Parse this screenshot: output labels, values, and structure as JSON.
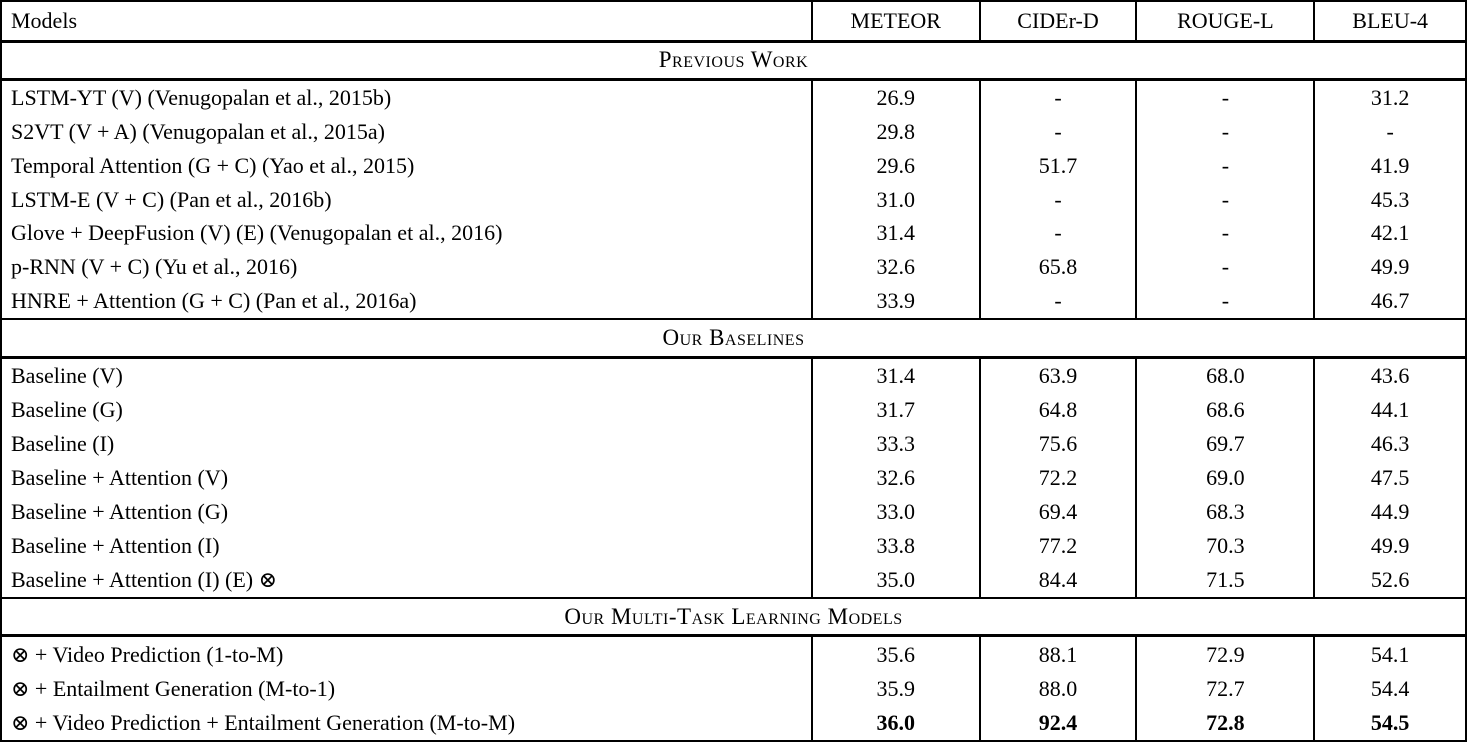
{
  "table": {
    "columns": [
      "Models",
      "METEOR",
      "CIDEr-D",
      "ROUGE-L",
      "BLEU-4"
    ],
    "sections": [
      {
        "title": "Previous Work",
        "rows": [
          {
            "model": "LSTM-YT (V) (Venugopalan et al., 2015b)",
            "values": [
              "26.9",
              "-",
              "-",
              "31.2"
            ],
            "bold_values": false
          },
          {
            "model": "S2VT (V + A) (Venugopalan et al., 2015a)",
            "values": [
              "29.8",
              "-",
              "-",
              "-"
            ],
            "bold_values": false
          },
          {
            "model": "Temporal Attention (G + C) (Yao et al., 2015)",
            "values": [
              "29.6",
              "51.7",
              "-",
              "41.9"
            ],
            "bold_values": false
          },
          {
            "model": "LSTM-E (V + C) (Pan et al., 2016b)",
            "values": [
              "31.0",
              "-",
              "-",
              "45.3"
            ],
            "bold_values": false
          },
          {
            "model": "Glove + DeepFusion (V) (E) (Venugopalan et al., 2016)",
            "values": [
              "31.4",
              "-",
              "-",
              "42.1"
            ],
            "bold_values": false
          },
          {
            "model": "p-RNN (V + C) (Yu et al., 2016)",
            "values": [
              "32.6",
              "65.8",
              "-",
              "49.9"
            ],
            "bold_values": false
          },
          {
            "model": "HNRE + Attention (G + C) (Pan et al., 2016a)",
            "values": [
              "33.9",
              "-",
              "-",
              "46.7"
            ],
            "bold_values": false
          }
        ]
      },
      {
        "title": "Our Baselines",
        "rows": [
          {
            "model": "Baseline (V)",
            "values": [
              "31.4",
              "63.9",
              "68.0",
              "43.6"
            ],
            "bold_values": false
          },
          {
            "model": "Baseline (G)",
            "values": [
              "31.7",
              "64.8",
              "68.6",
              "44.1"
            ],
            "bold_values": false
          },
          {
            "model": "Baseline (I)",
            "values": [
              "33.3",
              "75.6",
              "69.7",
              "46.3"
            ],
            "bold_values": false
          },
          {
            "model": "Baseline + Attention (V)",
            "values": [
              "32.6",
              "72.2",
              "69.0",
              "47.5"
            ],
            "bold_values": false
          },
          {
            "model": "Baseline + Attention (G)",
            "values": [
              "33.0",
              "69.4",
              "68.3",
              "44.9"
            ],
            "bold_values": false
          },
          {
            "model": "Baseline + Attention (I)",
            "values": [
              "33.8",
              "77.2",
              "70.3",
              "49.9"
            ],
            "bold_values": false
          },
          {
            "model": "Baseline + Attention (I) (E) ⊗",
            "values": [
              "35.0",
              "84.4",
              "71.5",
              "52.6"
            ],
            "bold_values": false
          }
        ]
      },
      {
        "title": "Our Multi-Task Learning Models",
        "rows": [
          {
            "model": "⊗ + Video Prediction (1-to-M)",
            "values": [
              "35.6",
              "88.1",
              "72.9",
              "54.1"
            ],
            "bold_values": false
          },
          {
            "model": "⊗ + Entailment Generation (M-to-1)",
            "values": [
              "35.9",
              "88.0",
              "72.7",
              "54.4"
            ],
            "bold_values": false
          },
          {
            "model": "⊗ + Video Prediction + Entailment Generation (M-to-M)",
            "values": [
              "36.0",
              "92.4",
              "72.8",
              "54.5"
            ],
            "bold_values": true
          }
        ]
      }
    ]
  }
}
